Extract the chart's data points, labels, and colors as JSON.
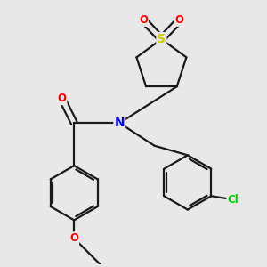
{
  "bg_color": "#e8e8e8",
  "bond_color": "#1a1a1a",
  "bond_width": 1.6,
  "atom_colors": {
    "S": "#cccc00",
    "O": "#ff0000",
    "N": "#0000ff",
    "Cl": "#00cc00",
    "C": "#1a1a1a"
  },
  "font_size": 8.5
}
